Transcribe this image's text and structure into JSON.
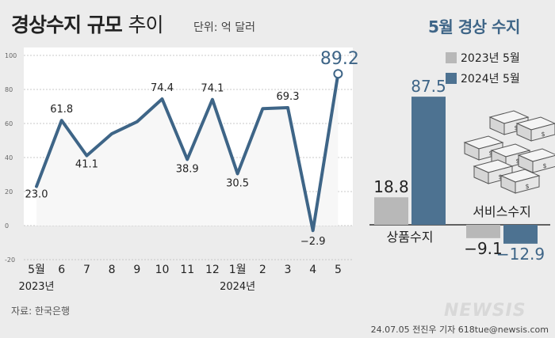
{
  "header": {
    "title_bold": "경상수지 규모",
    "title_light": "추이",
    "unit": "단위: 억 달러",
    "right_title": "5월 경상 수지"
  },
  "footer": {
    "source": "자료: 한국은행",
    "credit": "24.07.05 전진우 기자 618tue@newsis.com",
    "watermark": "NEWSIS"
  },
  "chart_data": [
    {
      "type": "line",
      "x": [
        "5월",
        "6",
        "7",
        "8",
        "9",
        "10",
        "11",
        "12",
        "1월",
        "2",
        "3",
        "4",
        "5"
      ],
      "year_labels": [
        {
          "label": "2023년",
          "index": 0
        },
        {
          "label": "2024년",
          "index": 8
        }
      ],
      "values": [
        23.0,
        61.8,
        41.1,
        54,
        61,
        74.4,
        38.9,
        74.1,
        30.5,
        68.7,
        69.3,
        -2.9,
        89.2
      ],
      "data_labels": [
        "23.0",
        "61.8",
        "41.1",
        null,
        null,
        "74.4",
        "38.9",
        "74.1",
        "30.5",
        null,
        "69.3",
        "−2.9",
        "89.2"
      ],
      "y_ticks": [
        -20,
        0,
        20,
        40,
        60,
        80,
        100
      ],
      "ylim": [
        -20,
        100
      ],
      "grid": true,
      "color": "#3e6587",
      "highlight_last": true
    },
    {
      "type": "bar",
      "categories": [
        "상품수지",
        "서비스수지"
      ],
      "series": [
        {
          "name": "2023년 5월",
          "values": [
            18.8,
            -9.1
          ],
          "labels": [
            "18.8",
            "−9.1"
          ],
          "color": "#b8b8b8"
        },
        {
          "name": "2024년 5월",
          "values": [
            87.5,
            -12.9
          ],
          "labels": [
            "87.5",
            "−12.9"
          ],
          "color": "#4d7291"
        }
      ]
    }
  ]
}
